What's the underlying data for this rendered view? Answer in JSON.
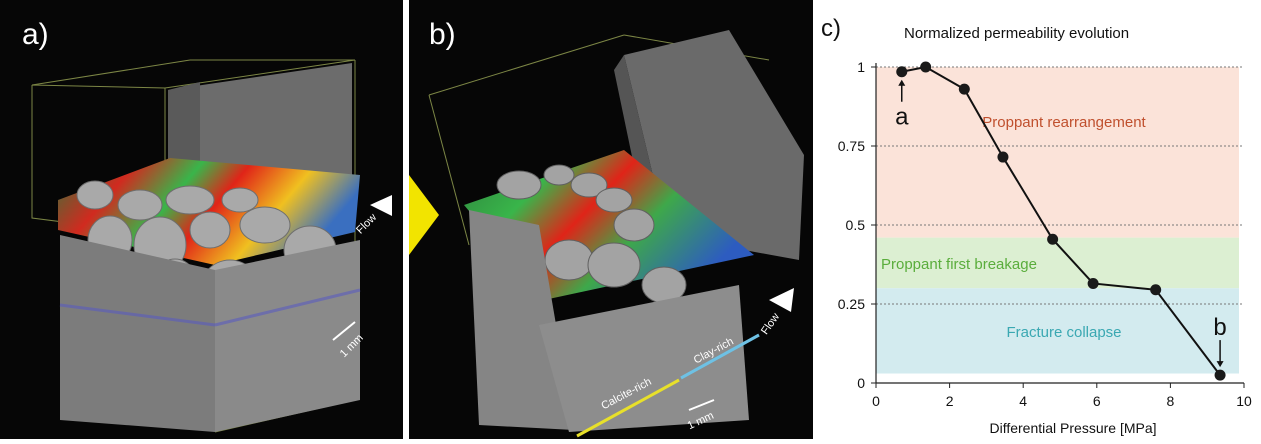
{
  "panel_a": {
    "letter": "a)",
    "flow_label": "Flow",
    "scale_label": "1 mm"
  },
  "panel_b": {
    "letter": "b)",
    "flow_label": "Flow",
    "scale_label": "1 mm",
    "calcite_label": "Calcite-rich",
    "clay_label": "Clay-rich"
  },
  "panel_c": {
    "letter": "c)"
  },
  "colors": {
    "background_dark": "#060606",
    "arrow_yellow": "#f2e400",
    "calcite_line": "#e8e02a",
    "clay_line": "#6ec1e4",
    "band_rearrangement": "#fbe3d9",
    "band_breakage": "#dcefd2",
    "band_collapse": "#d3ebef",
    "text_rearrangement": "#c0502e",
    "text_breakage": "#5aad3c",
    "text_collapse": "#3aa8b2"
  },
  "chart_data": {
    "type": "line",
    "title": "Normalized permeability evolution",
    "xlabel": "Differential Pressure [MPa]",
    "ylabel": "",
    "xlim": [
      0,
      10
    ],
    "ylim": [
      0,
      1
    ],
    "x_ticks": [
      "0",
      "2",
      "4",
      "6",
      "8",
      "10"
    ],
    "y_ticks": [
      "0",
      "0.25",
      "0.5",
      "0.75",
      "1"
    ],
    "grid": "horizontal dotted",
    "series": [
      {
        "x": [
          0.7,
          1.35,
          2.4,
          3.45,
          4.8,
          5.9,
          7.6,
          9.35
        ],
        "y": [
          0.985,
          1.0,
          0.93,
          0.715,
          0.455,
          0.315,
          0.295,
          0.025
        ]
      }
    ],
    "regions": [
      {
        "label": "Proppant rearrangement",
        "y_from": 0.46,
        "y_to": 1.0
      },
      {
        "label": "Proppant first breakage",
        "y_from": 0.3,
        "y_to": 0.46
      },
      {
        "label": "Fracture collapse",
        "y_from": 0.03,
        "y_to": 0.3
      }
    ],
    "annotations": [
      {
        "text": "a",
        "x": 0.7,
        "y": 0.985
      },
      {
        "text": "b",
        "x": 9.35,
        "y": 0.025
      }
    ]
  }
}
